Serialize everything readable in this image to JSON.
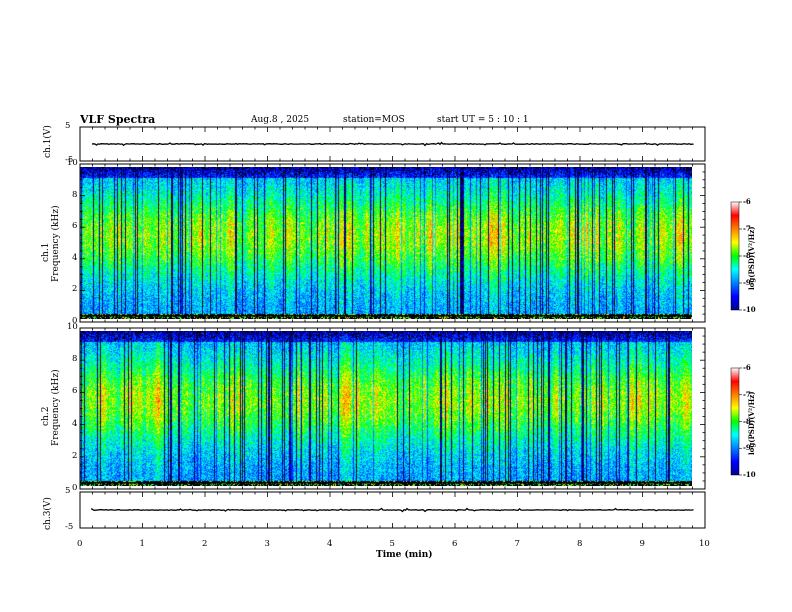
{
  "header": {
    "title": "VLF Spectra",
    "date": "Aug.8 , 2025",
    "station": "station=MOS",
    "start": "start UT = 5 : 10 : 1"
  },
  "chart_data": [
    {
      "type": "line",
      "name": "ch1-waveform",
      "ylabel": "ch.1(V)",
      "ylim": [
        -5,
        5
      ],
      "yticks": [
        "5",
        "-5"
      ],
      "trace_level": 0,
      "xlim": [
        0,
        10
      ]
    },
    {
      "type": "heatmap",
      "name": "ch1-spectrogram",
      "ylabel": "ch.1\nFrequency (kHz)",
      "ylabel_lines": [
        "ch.1",
        "Frequency (kHz)"
      ],
      "ylim": [
        0,
        10
      ],
      "yticks": [
        "0",
        "2",
        "4",
        "6",
        "8",
        "10"
      ],
      "xlim": [
        0,
        10
      ],
      "colorbar": {
        "label": "log(PSD)(V²/Hz)",
        "range": [
          -10,
          -6
        ],
        "ticks": [
          "-6",
          "-7",
          "-8",
          "-9",
          "-10"
        ]
      }
    },
    {
      "type": "heatmap",
      "name": "ch2-spectrogram",
      "ylabel": "ch.2\nFrequency (kHz)",
      "ylabel_lines": [
        "ch.2",
        "Frequency (kHz)"
      ],
      "ylim": [
        0,
        10
      ],
      "yticks": [
        "0",
        "2",
        "4",
        "6",
        "8",
        "10"
      ],
      "xlim": [
        0,
        10
      ],
      "colorbar": {
        "label": "log(PSD)(V²/Hz)",
        "range": [
          -10,
          -6
        ],
        "ticks": [
          "-6",
          "-7",
          "-8",
          "-9",
          "-10"
        ]
      }
    },
    {
      "type": "line",
      "name": "ch3-waveform",
      "ylabel": "ch.3(V)",
      "ylim": [
        -5,
        5
      ],
      "yticks": [
        "5",
        "-5"
      ],
      "trace_level": 0,
      "xlim": [
        0,
        10
      ]
    }
  ],
  "xaxis": {
    "label": "Time (min)",
    "ticks": [
      "0",
      "1",
      "2",
      "3",
      "4",
      "5",
      "6",
      "7",
      "8",
      "9",
      "10"
    ],
    "range": [
      0,
      10
    ],
    "data_end": 9.82
  }
}
